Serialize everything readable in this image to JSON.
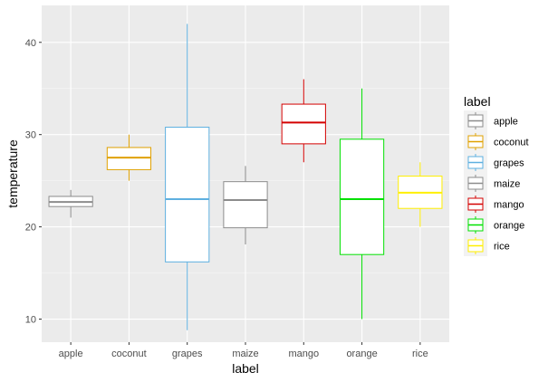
{
  "chart_data": {
    "type": "boxplot",
    "title": "",
    "xlabel": "label",
    "ylabel": "temperature",
    "ylim": [
      7.5,
      44
    ],
    "yticks": [
      10,
      20,
      30,
      40
    ],
    "grid": true,
    "legend": {
      "title": "label",
      "placement": "right"
    },
    "categories": [
      "apple",
      "coconut",
      "grapes",
      "maize",
      "mango",
      "orange",
      "rice"
    ],
    "series": [
      {
        "name": "apple",
        "color": "#8c8c8c",
        "min": 21.0,
        "q1": 22.2,
        "median": 22.7,
        "q3": 23.3,
        "max": 24.0
      },
      {
        "name": "coconut",
        "color": "#e0a100",
        "min": 25.0,
        "q1": 26.2,
        "median": 27.5,
        "q3": 28.6,
        "max": 30.0
      },
      {
        "name": "grapes",
        "color": "#5eb0e0",
        "min": 8.8,
        "q1": 16.2,
        "median": 23.0,
        "q3": 30.8,
        "max": 42.0
      },
      {
        "name": "maize",
        "color": "#8c8c8c",
        "min": 18.1,
        "q1": 19.9,
        "median": 22.9,
        "q3": 24.9,
        "max": 26.6
      },
      {
        "name": "mango",
        "color": "#d40000",
        "min": 27.0,
        "q1": 29.0,
        "median": 31.3,
        "q3": 33.3,
        "max": 36.0
      },
      {
        "name": "orange",
        "color": "#00e000",
        "min": 10.0,
        "q1": 17.0,
        "median": 23.0,
        "q3": 29.5,
        "max": 35.0
      },
      {
        "name": "rice",
        "color": "#ffef00",
        "min": 20.0,
        "q1": 22.0,
        "median": 23.7,
        "q3": 25.5,
        "max": 27.0
      }
    ]
  }
}
